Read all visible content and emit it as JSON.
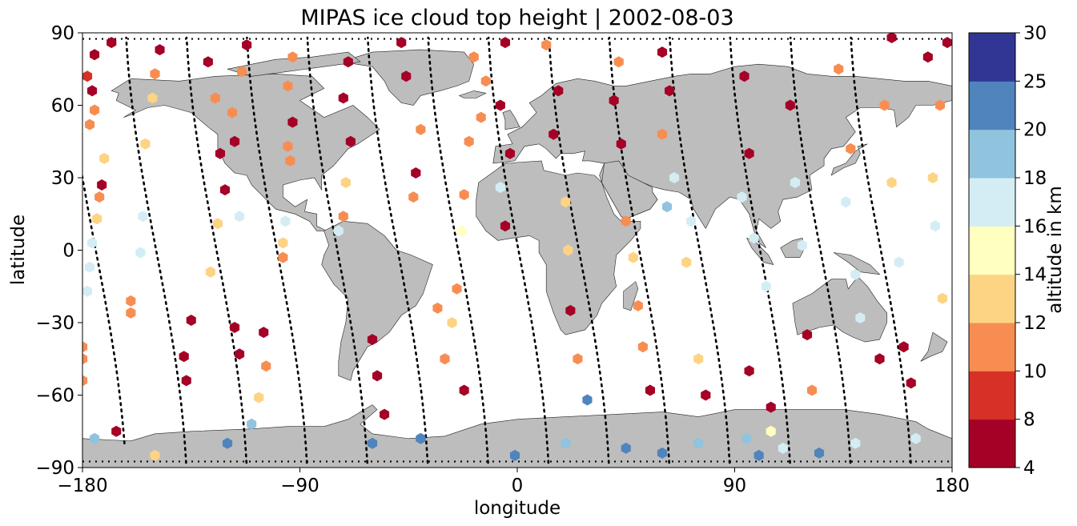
{
  "chart_data": {
    "type": "map",
    "title": "MIPAS ice cloud top height | 2002-08-03",
    "xlabel": "longitude",
    "ylabel": "latitude",
    "xlim": [
      -180,
      180
    ],
    "ylim": [
      -90,
      90
    ],
    "x_ticks": [
      "−180",
      "−90",
      "0",
      "90",
      "180"
    ],
    "y_ticks": [
      "−90",
      "−60",
      "−30",
      "0",
      "30",
      "60",
      "90"
    ],
    "grid": false,
    "colorbar": {
      "label": "altitude in km",
      "bounds": [
        4,
        8,
        10,
        12,
        14,
        16,
        18,
        20,
        25,
        30
      ],
      "tick_labels": [
        "4",
        "8",
        "10",
        "12",
        "14",
        "16",
        "18",
        "20",
        "25",
        "30"
      ],
      "colors": [
        "#a50026",
        "#d73027",
        "#f88d52",
        "#fdd384",
        "#ffffbf",
        "#d4edf4",
        "#90c3de",
        "#4f84bc",
        "#313695"
      ]
    },
    "land_color": "#bdbdbd",
    "track_color": "#000000",
    "orbit_tracks": [
      {
        "lon0": -170,
        "lat_range": [
          -80,
          88
        ],
        "direction": "asc"
      },
      {
        "lon0": -145,
        "lat_range": [
          -88,
          88
        ],
        "direction": "asc"
      },
      {
        "lon0": -120,
        "lat_range": [
          -88,
          88
        ],
        "direction": "asc"
      },
      {
        "lon0": -95,
        "lat_range": [
          -88,
          88
        ],
        "direction": "asc"
      },
      {
        "lon0": -70,
        "lat_range": [
          -88,
          88
        ],
        "direction": "asc"
      },
      {
        "lon0": -45,
        "lat_range": [
          -88,
          88
        ],
        "direction": "asc"
      },
      {
        "lon0": -20,
        "lat_range": [
          -88,
          88
        ],
        "direction": "asc"
      },
      {
        "lon0": 5,
        "lat_range": [
          -88,
          88
        ],
        "direction": "asc"
      },
      {
        "lon0": 30,
        "lat_range": [
          -88,
          88
        ],
        "direction": "asc"
      },
      {
        "lon0": 55,
        "lat_range": [
          -88,
          88
        ],
        "direction": "asc"
      },
      {
        "lon0": 80,
        "lat_range": [
          -88,
          88
        ],
        "direction": "asc"
      },
      {
        "lon0": 105,
        "lat_range": [
          -88,
          88
        ],
        "direction": "asc"
      },
      {
        "lon0": 130,
        "lat_range": [
          -88,
          88
        ],
        "direction": "asc"
      },
      {
        "lon0": 155,
        "lat_range": [
          -88,
          88
        ],
        "direction": "asc"
      }
    ],
    "points": [
      {
        "lon": -168,
        "lat": 86,
        "alt": 5
      },
      {
        "lon": -175,
        "lat": 81,
        "alt": 5
      },
      {
        "lon": -178,
        "lat": 72,
        "alt": 9
      },
      {
        "lon": -176,
        "lat": 66,
        "alt": 5
      },
      {
        "lon": -175,
        "lat": 58,
        "alt": 11
      },
      {
        "lon": -177,
        "lat": 52,
        "alt": 11
      },
      {
        "lon": -171,
        "lat": 38,
        "alt": 13
      },
      {
        "lon": -172,
        "lat": 27,
        "alt": 5
      },
      {
        "lon": -173,
        "lat": 22,
        "alt": 11
      },
      {
        "lon": -174,
        "lat": 13,
        "alt": 13
      },
      {
        "lon": -176,
        "lat": 3,
        "alt": 17
      },
      {
        "lon": -177,
        "lat": -7,
        "alt": 17
      },
      {
        "lon": -178,
        "lat": -17,
        "alt": 17
      },
      {
        "lon": -180,
        "lat": -40,
        "alt": 11
      },
      {
        "lon": -180,
        "lat": -45,
        "alt": 11
      },
      {
        "lon": -180,
        "lat": -54,
        "alt": 11
      },
      {
        "lon": -166,
        "lat": -75,
        "alt": 5
      },
      {
        "lon": -160,
        "lat": -21,
        "alt": 11
      },
      {
        "lon": -160,
        "lat": -26,
        "alt": 11
      },
      {
        "lon": -148,
        "lat": 83,
        "alt": 5
      },
      {
        "lon": -150,
        "lat": 73,
        "alt": 11
      },
      {
        "lon": -151,
        "lat": 63,
        "alt": 13
      },
      {
        "lon": -154,
        "lat": 44,
        "alt": 13
      },
      {
        "lon": -155,
        "lat": 14,
        "alt": 17
      },
      {
        "lon": -156,
        "lat": -1,
        "alt": 17
      },
      {
        "lon": -135,
        "lat": -29,
        "alt": 5
      },
      {
        "lon": -138,
        "lat": -44,
        "alt": 5
      },
      {
        "lon": -137,
        "lat": -54,
        "alt": 5
      },
      {
        "lon": -128,
        "lat": 78,
        "alt": 5
      },
      {
        "lon": -125,
        "lat": 63,
        "alt": 11
      },
      {
        "lon": -123,
        "lat": 40,
        "alt": 5
      },
      {
        "lon": -121,
        "lat": 25,
        "alt": 5
      },
      {
        "lon": -124,
        "lat": 11,
        "alt": 13
      },
      {
        "lon": -127,
        "lat": -9,
        "alt": 13
      },
      {
        "lon": -112,
        "lat": 85,
        "alt": 5
      },
      {
        "lon": -114,
        "lat": 74,
        "alt": 11
      },
      {
        "lon": -118,
        "lat": 57,
        "alt": 11
      },
      {
        "lon": -117,
        "lat": 45,
        "alt": 5
      },
      {
        "lon": -115,
        "lat": 14,
        "alt": 17
      },
      {
        "lon": -117,
        "lat": -32,
        "alt": 5
      },
      {
        "lon": -115,
        "lat": -43,
        "alt": 5
      },
      {
        "lon": -105,
        "lat": -34,
        "alt": 5
      },
      {
        "lon": -104,
        "lat": -48,
        "alt": 11
      },
      {
        "lon": -107,
        "lat": -61,
        "alt": 13
      },
      {
        "lon": -110,
        "lat": -72,
        "alt": 19
      },
      {
        "lon": -93,
        "lat": 80,
        "alt": 11
      },
      {
        "lon": -95,
        "lat": 68,
        "alt": 11
      },
      {
        "lon": -93,
        "lat": 53,
        "alt": 5
      },
      {
        "lon": -95,
        "lat": 43,
        "alt": 11
      },
      {
        "lon": -94,
        "lat": 37,
        "alt": 11
      },
      {
        "lon": -96,
        "lat": 12,
        "alt": 17
      },
      {
        "lon": -97,
        "lat": 3,
        "alt": 13
      },
      {
        "lon": -97,
        "lat": -3,
        "alt": 11
      },
      {
        "lon": -70,
        "lat": 78,
        "alt": 5
      },
      {
        "lon": -72,
        "lat": 63,
        "alt": 5
      },
      {
        "lon": -69,
        "lat": 45,
        "alt": 5
      },
      {
        "lon": -71,
        "lat": 28,
        "alt": 13
      },
      {
        "lon": -72,
        "lat": 14,
        "alt": 11
      },
      {
        "lon": -74,
        "lat": 8,
        "alt": 17
      },
      {
        "lon": -60,
        "lat": -37,
        "alt": 5
      },
      {
        "lon": -58,
        "lat": -52,
        "alt": 5
      },
      {
        "lon": -55,
        "lat": -68,
        "alt": 5
      },
      {
        "lon": -48,
        "lat": 86,
        "alt": 5
      },
      {
        "lon": -46,
        "lat": 72,
        "alt": 5
      },
      {
        "lon": -40,
        "lat": 50,
        "alt": 11
      },
      {
        "lon": -42,
        "lat": 32,
        "alt": 5
      },
      {
        "lon": -43,
        "lat": 22,
        "alt": 11
      },
      {
        "lon": -33,
        "lat": -24,
        "alt": 11
      },
      {
        "lon": -30,
        "lat": -45,
        "alt": 11
      },
      {
        "lon": -22,
        "lat": -58,
        "alt": 5
      },
      {
        "lon": -18,
        "lat": 80,
        "alt": 11
      },
      {
        "lon": -13,
        "lat": 70,
        "alt": 11
      },
      {
        "lon": -15,
        "lat": 55,
        "alt": 11
      },
      {
        "lon": -20,
        "lat": 45,
        "alt": 11
      },
      {
        "lon": -22,
        "lat": 23,
        "alt": 11
      },
      {
        "lon": -23,
        "lat": 8,
        "alt": 15
      },
      {
        "lon": -25,
        "lat": -16,
        "alt": 11
      },
      {
        "lon": -27,
        "lat": -30,
        "alt": 13
      },
      {
        "lon": -5,
        "lat": 86,
        "alt": 5
      },
      {
        "lon": -7,
        "lat": 60,
        "alt": 5
      },
      {
        "lon": -3,
        "lat": 40,
        "alt": 5
      },
      {
        "lon": -7,
        "lat": 26,
        "alt": 17
      },
      {
        "lon": -5,
        "lat": 10,
        "alt": 5
      },
      {
        "lon": -1,
        "lat": -85,
        "alt": 21
      },
      {
        "lon": 12,
        "lat": 85,
        "alt": 11
      },
      {
        "lon": 17,
        "lat": 66,
        "alt": 5
      },
      {
        "lon": 15,
        "lat": 48,
        "alt": 5
      },
      {
        "lon": 20,
        "lat": 20,
        "alt": 13
      },
      {
        "lon": 21,
        "lat": 0,
        "alt": 13
      },
      {
        "lon": 22,
        "lat": -25,
        "alt": 5
      },
      {
        "lon": 25,
        "lat": -45,
        "alt": 11
      },
      {
        "lon": 29,
        "lat": -62,
        "alt": 21
      },
      {
        "lon": 42,
        "lat": 78,
        "alt": 11
      },
      {
        "lon": 40,
        "lat": 62,
        "alt": 5
      },
      {
        "lon": 43,
        "lat": 44,
        "alt": 5
      },
      {
        "lon": 45,
        "lat": 12,
        "alt": 11
      },
      {
        "lon": 48,
        "lat": -3,
        "alt": 13
      },
      {
        "lon": 50,
        "lat": -23,
        "alt": 11
      },
      {
        "lon": 52,
        "lat": -40,
        "alt": 11
      },
      {
        "lon": 55,
        "lat": -58,
        "alt": 5
      },
      {
        "lon": 60,
        "lat": 82,
        "alt": 5
      },
      {
        "lon": 63,
        "lat": 66,
        "alt": 5
      },
      {
        "lon": 60,
        "lat": 48,
        "alt": 11
      },
      {
        "lon": 65,
        "lat": 30,
        "alt": 17
      },
      {
        "lon": 62,
        "lat": 18,
        "alt": 19
      },
      {
        "lon": 72,
        "lat": 12,
        "alt": 17
      },
      {
        "lon": 70,
        "lat": -5,
        "alt": 13
      },
      {
        "lon": 75,
        "lat": -45,
        "alt": 13
      },
      {
        "lon": 78,
        "lat": -60,
        "alt": 5
      },
      {
        "lon": 94,
        "lat": 72,
        "alt": 5
      },
      {
        "lon": 96,
        "lat": 40,
        "alt": 5
      },
      {
        "lon": 93,
        "lat": 22,
        "alt": 17
      },
      {
        "lon": 98,
        "lat": 5,
        "alt": 17
      },
      {
        "lon": 103,
        "lat": -15,
        "alt": 17
      },
      {
        "lon": 96,
        "lat": -50,
        "alt": 5
      },
      {
        "lon": 105,
        "lat": -65,
        "alt": 5
      },
      {
        "lon": 113,
        "lat": 60,
        "alt": 5
      },
      {
        "lon": 115,
        "lat": 28,
        "alt": 17
      },
      {
        "lon": 118,
        "lat": 2,
        "alt": 17
      },
      {
        "lon": 120,
        "lat": -35,
        "alt": 5
      },
      {
        "lon": 122,
        "lat": -58,
        "alt": 11
      },
      {
        "lon": 133,
        "lat": 75,
        "alt": 11
      },
      {
        "lon": 138,
        "lat": 42,
        "alt": 11
      },
      {
        "lon": 136,
        "lat": 20,
        "alt": 17
      },
      {
        "lon": 140,
        "lat": -10,
        "alt": 17
      },
      {
        "lon": 142,
        "lat": -28,
        "alt": 17
      },
      {
        "lon": 150,
        "lat": -45,
        "alt": 5
      },
      {
        "lon": 155,
        "lat": 88,
        "alt": 5
      },
      {
        "lon": 152,
        "lat": 60,
        "alt": 11
      },
      {
        "lon": 155,
        "lat": 28,
        "alt": 13
      },
      {
        "lon": 158,
        "lat": -5,
        "alt": 17
      },
      {
        "lon": 160,
        "lat": -40,
        "alt": 5
      },
      {
        "lon": 163,
        "lat": -55,
        "alt": 5
      },
      {
        "lon": 170,
        "lat": 80,
        "alt": 5
      },
      {
        "lon": 175,
        "lat": 60,
        "alt": 11
      },
      {
        "lon": 172,
        "lat": 30,
        "alt": 13
      },
      {
        "lon": 173,
        "lat": 10,
        "alt": 17
      },
      {
        "lon": 176,
        "lat": -20,
        "alt": 13
      },
      {
        "lon": 178,
        "lat": 86,
        "alt": 5
      },
      {
        "lon": -120,
        "lat": -80,
        "alt": 22
      },
      {
        "lon": -60,
        "lat": -80,
        "alt": 22
      },
      {
        "lon": -40,
        "lat": -78,
        "alt": 22
      },
      {
        "lon": 45,
        "lat": -82,
        "alt": 22
      },
      {
        "lon": 60,
        "lat": -84,
        "alt": 22
      },
      {
        "lon": 75,
        "lat": -80,
        "alt": 19
      },
      {
        "lon": 95,
        "lat": -78,
        "alt": 19
      },
      {
        "lon": 110,
        "lat": -82,
        "alt": 17
      },
      {
        "lon": 125,
        "lat": -84,
        "alt": 22
      },
      {
        "lon": 140,
        "lat": -80,
        "alt": 17
      },
      {
        "lon": 165,
        "lat": -78,
        "alt": 17
      },
      {
        "lon": -150,
        "lat": -85,
        "alt": 13
      },
      {
        "lon": -175,
        "lat": -78,
        "alt": 19
      },
      {
        "lon": 105,
        "lat": -75,
        "alt": 15
      },
      {
        "lon": 100,
        "lat": -85,
        "alt": 22
      },
      {
        "lon": 20,
        "lat": -80,
        "alt": 19
      }
    ]
  }
}
